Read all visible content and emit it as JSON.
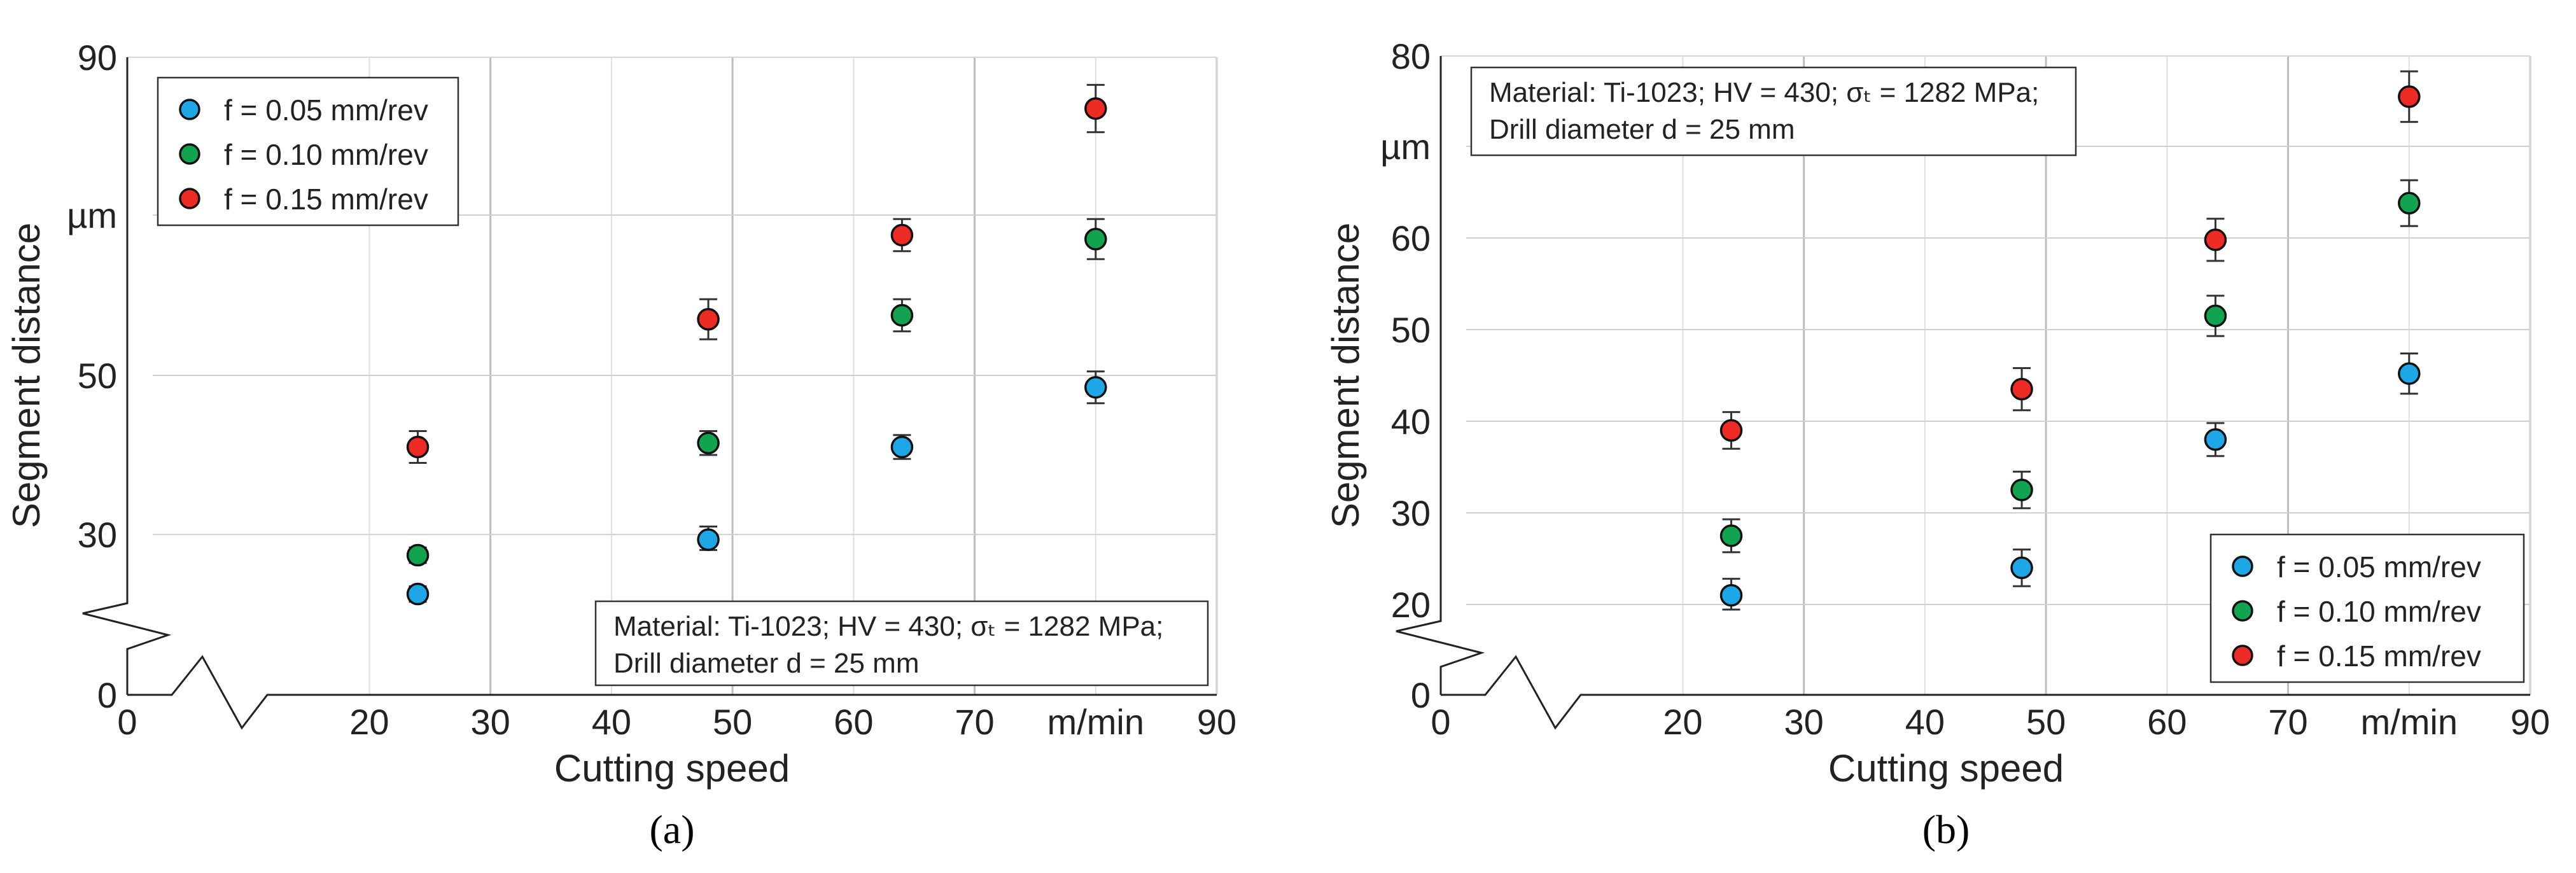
{
  "chart_data": [
    {
      "type": "scatter",
      "panel_label": "(a)",
      "xlabel": "Cutting speed",
      "ylabel": "Segment distance",
      "x_unit_label": "m/min",
      "y_unit_label": "µm",
      "xlim": [
        0,
        90
      ],
      "x_ticks": [
        "0",
        "20",
        "30",
        "40",
        "50",
        "60",
        "70",
        "m/min",
        "90"
      ],
      "y_ticks": [
        "0",
        "30",
        "50",
        "90"
      ],
      "y_unit_tick_value": 70,
      "grid": true,
      "axis_break": true,
      "note_lines": [
        "Material: Ti-1023; HV = 430; σₜ = 1282 MPa;",
        "Drill diameter d = 25 mm"
      ],
      "x": [
        24,
        48,
        64,
        80
      ],
      "series": [
        {
          "name": "f = 0.05 mm/rev",
          "color": "#1ea7e6",
          "values": [
            18.5,
            29,
            41,
            48.5
          ],
          "errors": [
            1.5,
            2,
            1.5,
            2
          ]
        },
        {
          "name": "f = 0.10 mm/rev",
          "color": "#12a351",
          "values": [
            26,
            41.5,
            57.5,
            67
          ],
          "errors": [
            1.5,
            1.5,
            2,
            2.5
          ]
        },
        {
          "name": "f = 0.15 mm/rev",
          "color": "#ee2a24",
          "values": [
            41,
            57,
            67.5,
            83.5
          ],
          "errors": [
            2,
            2.5,
            2,
            3
          ]
        }
      ]
    },
    {
      "type": "scatter",
      "panel_label": "(b)",
      "xlabel": "Cutting speed",
      "ylabel": "Segment distance",
      "x_unit_label": "m/min",
      "y_unit_label": "µm",
      "xlim": [
        0,
        90
      ],
      "x_ticks": [
        "0",
        "20",
        "30",
        "40",
        "50",
        "60",
        "70",
        "m/min",
        "90"
      ],
      "y_ticks": [
        "0",
        "20",
        "30",
        "40",
        "50",
        "60",
        "80"
      ],
      "y_unit_tick_value": 70,
      "grid": true,
      "axis_break": true,
      "note_lines": [
        "Material: Ti-1023; HV = 430; σₜ = 1282 MPa;",
        "Drill diameter d = 25 mm"
      ],
      "x": [
        24,
        48,
        64,
        80
      ],
      "series": [
        {
          "name": "f = 0.05 mm/rev",
          "color": "#1ea7e6",
          "values": [
            21,
            24,
            38,
            45.2
          ],
          "errors": [
            1.8,
            2,
            1.8,
            2.2
          ]
        },
        {
          "name": "f = 0.10 mm/rev",
          "color": "#12a351",
          "values": [
            27.5,
            32.5,
            51.5,
            63.8
          ],
          "errors": [
            1.8,
            2,
            2.2,
            2.5
          ]
        },
        {
          "name": "f = 0.15 mm/rev",
          "color": "#ee2a24",
          "values": [
            39,
            43.5,
            59.8,
            75.5
          ],
          "errors": [
            2,
            2.3,
            2.3,
            2.8
          ]
        }
      ]
    }
  ]
}
